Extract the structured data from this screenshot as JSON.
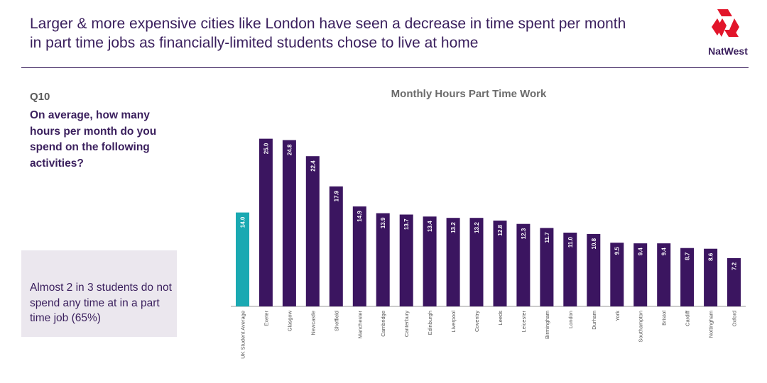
{
  "header": {
    "headline_line1": "Larger & more expensive cities like London have seen a decrease in time spent per month",
    "headline_line2": "in part time jobs as financially-limited students chose to live at home",
    "logo_text": "NatWest"
  },
  "question": {
    "number": "Q10",
    "text": "On average, how many hours per month do you spend on the following activities?"
  },
  "callout": {
    "text": "Almost 2 in 3 students do not spend any time at in a part time job (65%)"
  },
  "colors": {
    "bar": "#3b1560",
    "highlight_bar": "#1aa9b2",
    "brand": "#e2152a",
    "text": "#3a1f5d"
  },
  "chart_data": {
    "type": "bar",
    "title": "Monthly Hours Part Time Work",
    "xlabel": "",
    "ylabel": "",
    "grid": false,
    "legend": "none",
    "ylim": [
      0,
      27.5
    ],
    "categories": [
      "UK Student Average",
      "Exeter",
      "Glasgow",
      "Newcastle",
      "Sheffield",
      "Manchester",
      "Cambridge",
      "Canterbury",
      "Edinburgh",
      "Liverpool",
      "Coventry",
      "Leeds",
      "Leicester",
      "Birmingham",
      "London",
      "Durham",
      "York",
      "Southampton",
      "Bristol",
      "Cardiff",
      "Nottingham",
      "Oxford"
    ],
    "values": [
      14.0,
      25.0,
      24.8,
      22.4,
      17.9,
      14.9,
      13.9,
      13.7,
      13.4,
      13.2,
      13.2,
      12.8,
      12.3,
      11.7,
      11.0,
      10.8,
      9.5,
      9.4,
      9.4,
      8.7,
      8.6,
      7.2
    ],
    "value_labels": [
      "14.0",
      "25.0",
      "24.8",
      "22.4",
      "17.9",
      "14.9",
      "13.9",
      "13.7",
      "13.4",
      "13.2",
      "13.2",
      "12.8",
      "12.3",
      "11.7",
      "11.0",
      "10.8",
      "9.5",
      "9.4",
      "9.4",
      "8.7",
      "8.6",
      "7.2"
    ],
    "highlight_index": 0
  }
}
